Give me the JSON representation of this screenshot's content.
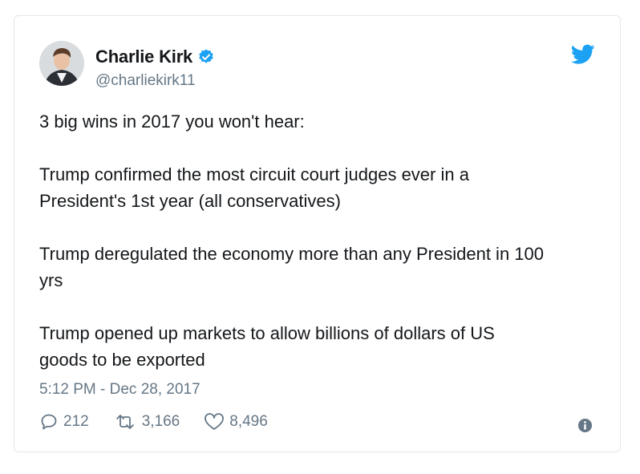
{
  "tweet": {
    "display_name": "Charlie Kirk",
    "handle": "@charliekirk11",
    "verified_icon": "verified-badge-icon",
    "lines": [
      "3 big wins in 2017 you won't hear:",
      "Trump confirmed the most circuit court judges ever in a",
      "President's 1st year (all conservatives)",
      "Trump deregulated the economy more than any President in 100",
      "yrs",
      "Trump opened up markets to allow billions of dollars of US",
      "goods to be exported"
    ],
    "timestamp": "5:12 PM - Dec 28, 2017",
    "replies": "212",
    "retweets": "3,166",
    "likes": "8,496"
  },
  "colors": {
    "brand_blue": "#1da1f2",
    "muted_text": "#657786",
    "primary_text": "#14171a",
    "border": "#e1e8ed"
  },
  "icons": [
    "twitter-bird-icon",
    "reply-icon",
    "retweet-icon",
    "like-icon",
    "info-icon",
    "verified-badge-icon"
  ]
}
